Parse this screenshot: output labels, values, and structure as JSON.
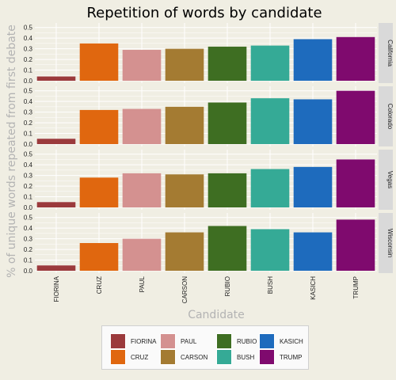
{
  "chart_data": {
    "type": "bar",
    "title": "Repetition of words by candidate",
    "xlabel": "Candidate",
    "ylabel": "% of unique words repeated from first debate",
    "ylim": [
      0,
      0.52
    ],
    "yticks": [
      "0.0",
      "0.1",
      "0.2",
      "0.3",
      "0.4",
      "0.5"
    ],
    "categories": [
      "FIORINA",
      "CRUZ",
      "PAUL",
      "CARSON",
      "RUBIO",
      "BUSH",
      "KASICH",
      "TRUMP"
    ],
    "colors": [
      "#9b3a3c",
      "#e0670f",
      "#d49190",
      "#a47b32",
      "#3e6e22",
      "#35aa96",
      "#1e6bbd",
      "#7f0a6e"
    ],
    "panels": [
      {
        "name": "California",
        "values": [
          0.04,
          0.35,
          0.29,
          0.3,
          0.32,
          0.33,
          0.39,
          0.41
        ]
      },
      {
        "name": "Colorado",
        "values": [
          0.05,
          0.32,
          0.33,
          0.35,
          0.39,
          0.43,
          0.42,
          0.5
        ]
      },
      {
        "name": "Vegas",
        "values": [
          0.05,
          0.28,
          0.32,
          0.31,
          0.32,
          0.36,
          0.38,
          0.45
        ]
      },
      {
        "name": "Wisconsin",
        "values": [
          0.05,
          0.26,
          0.3,
          0.36,
          0.42,
          0.39,
          0.36,
          0.48
        ]
      }
    ],
    "legend": {
      "position": "bottom",
      "columns": 4,
      "rows": 2
    },
    "grid": true
  }
}
